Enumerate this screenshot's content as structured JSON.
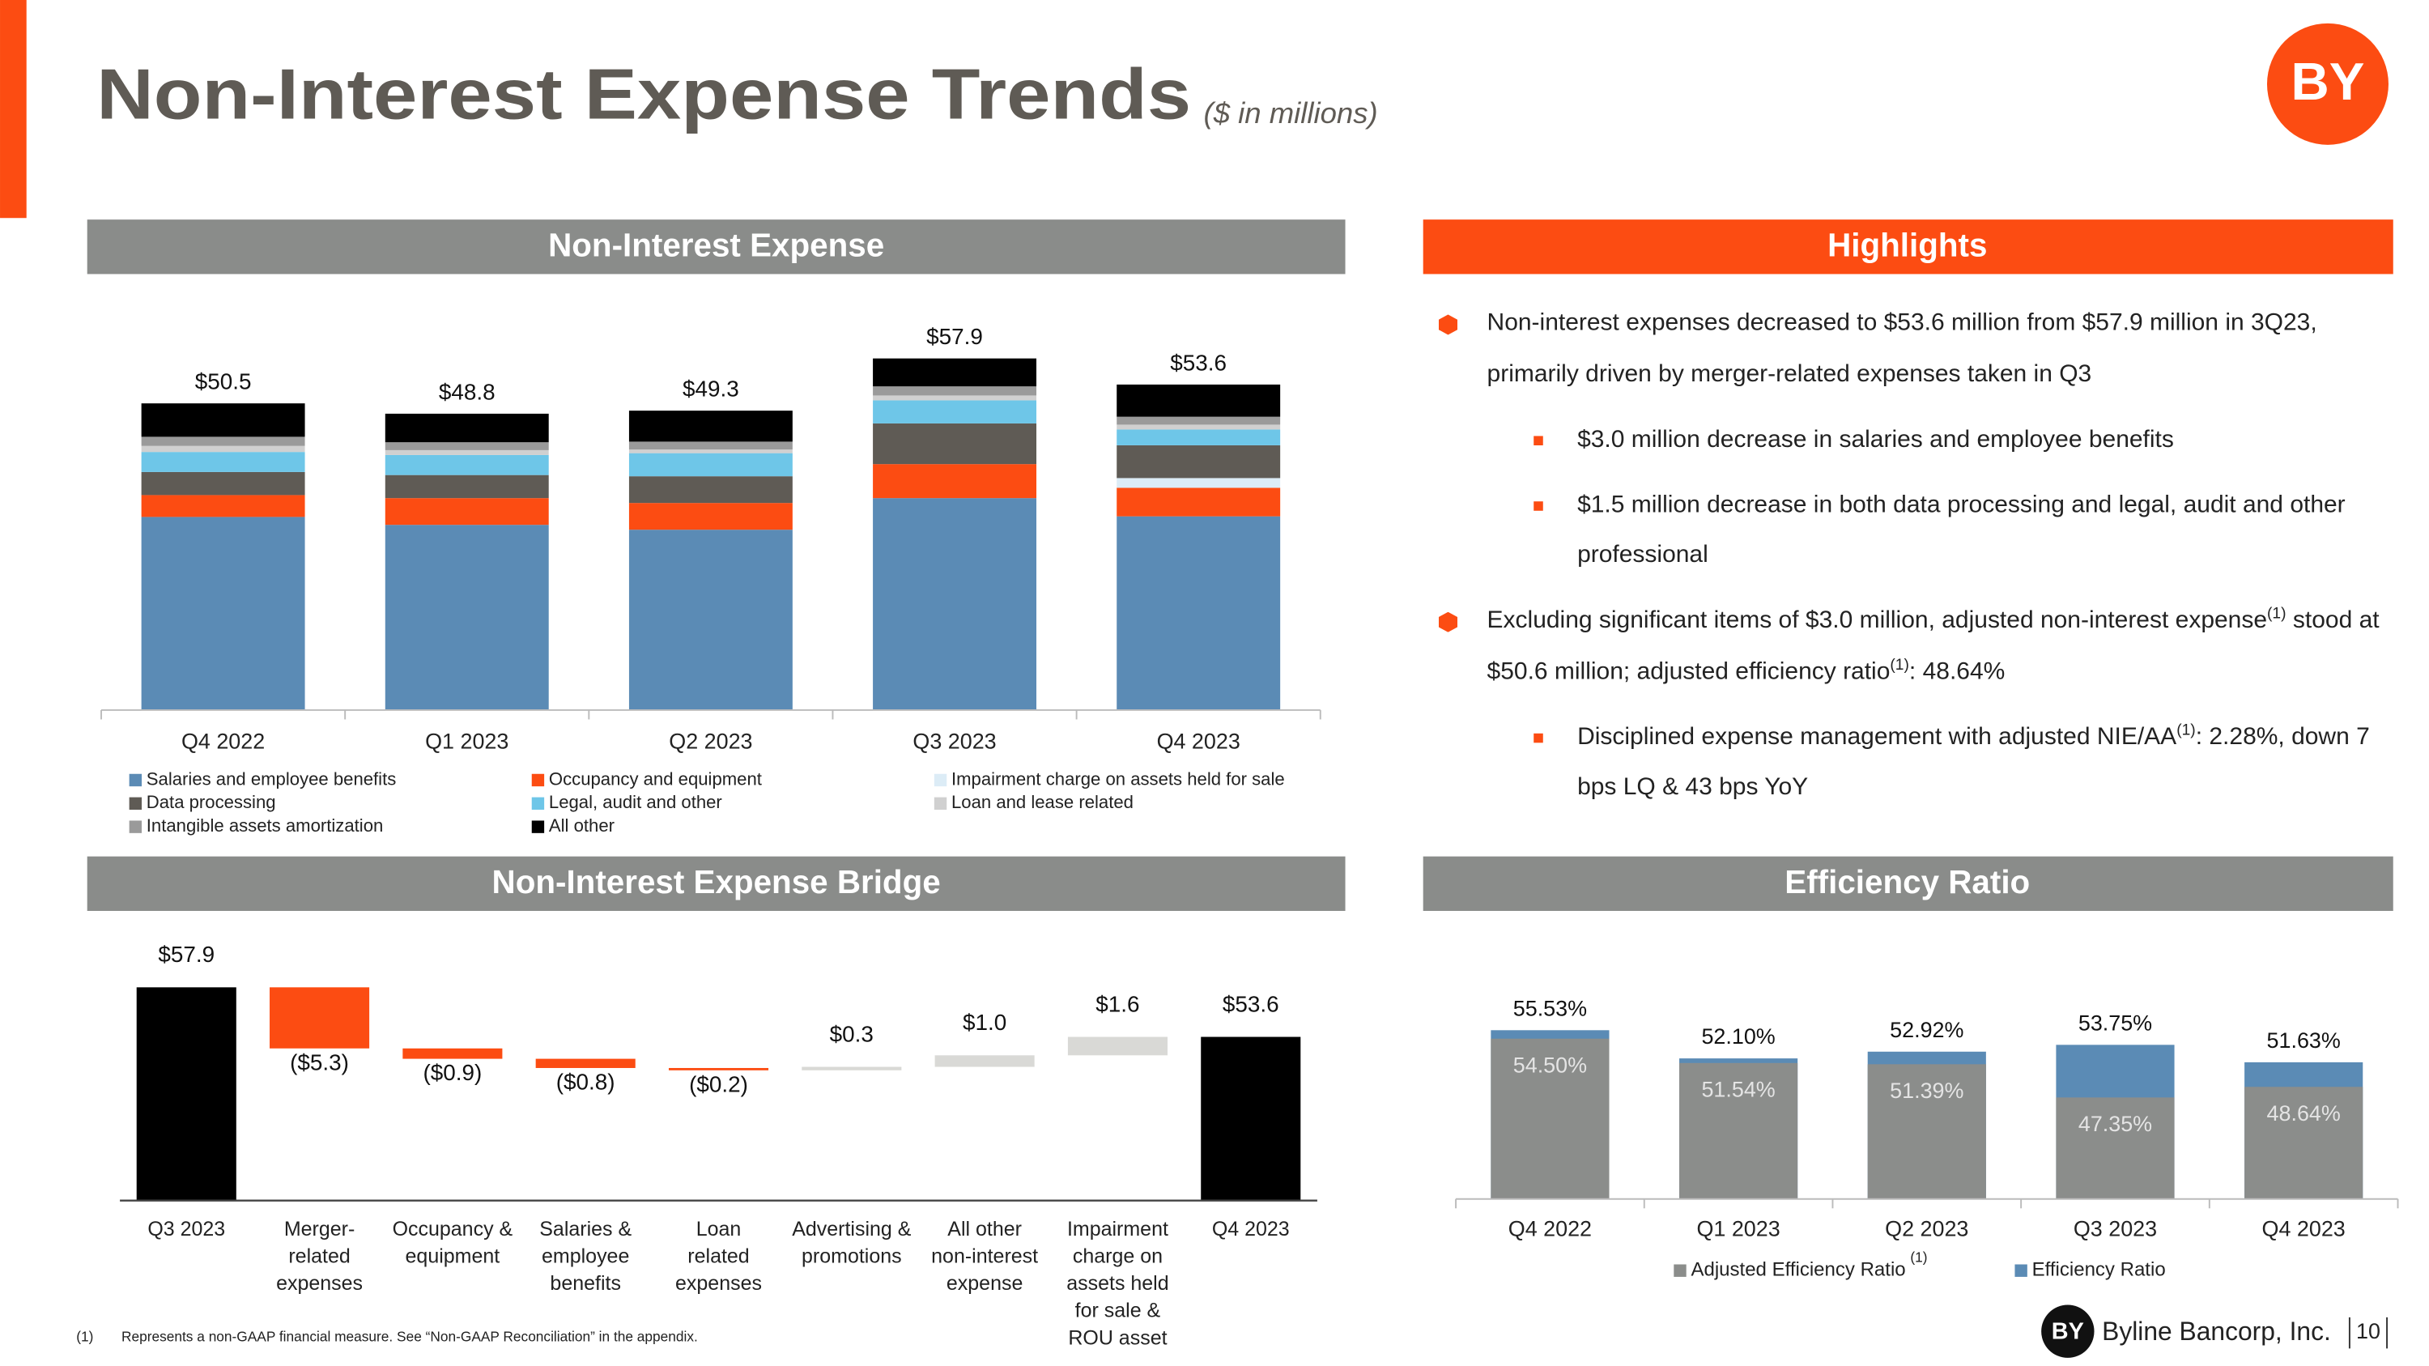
{
  "header": {
    "title": "Non-Interest Expense Trends",
    "subtitle": "($ in millions)",
    "logo": "BY"
  },
  "sections": {
    "expense": "Non-Interest Expense",
    "highlights": "Highlights",
    "bridge": "Non-Interest Expense Bridge",
    "efficiency": "Efficiency Ratio"
  },
  "highlights": [
    {
      "segments": [
        "Non-interest expenses decreased to $53.6 million from $57.9 million in 3Q23, primarily driven by merger-related expenses taken in Q3"
      ],
      "sub": [
        {
          "segments": [
            "$3.0 million decrease in salaries and employee benefits"
          ]
        },
        {
          "segments": [
            "$1.5 million decrease in both data processing and legal, audit and other professional"
          ]
        }
      ]
    },
    {
      "segments": [
        "Excluding significant items of $3.0 million, adjusted non-interest expense",
        "(1)",
        " stood at $50.6 million; adjusted efficiency ratio",
        "(1)",
        ": 48.64%"
      ],
      "sub": [
        {
          "segments": [
            "Disciplined expense management with adjusted NIE/AA",
            "(1)",
            ": 2.28%, down 7 bps LQ & 43 bps YoY"
          ]
        }
      ]
    }
  ],
  "chart_data": [
    {
      "type": "stacked_bar",
      "categories": [
        "Q4 2022",
        "Q1 2023",
        "Q2 2023",
        "Q3 2023",
        "Q4 2023"
      ],
      "ylim": [
        0,
        60
      ],
      "totals": [
        50.5,
        48.8,
        49.3,
        57.9,
        53.6
      ],
      "total_labels": [
        "$50.5",
        "$48.8",
        "$49.3",
        "$57.9",
        "$53.6"
      ],
      "series": [
        {
          "name": "Salaries and employee benefits",
          "color": "#5b8bb5",
          "values": [
            31.8,
            30.5,
            29.7,
            34.9,
            31.9
          ]
        },
        {
          "name": "Occupancy and equipment",
          "color": "#fc4c12",
          "values": [
            3.6,
            4.4,
            4.4,
            5.6,
            4.7
          ]
        },
        {
          "name": "Impairment charge on assets held for sale",
          "color": "#dcecf6",
          "values": [
            0,
            0,
            0,
            0,
            1.6
          ]
        },
        {
          "name": "Data processing",
          "color": "#5f5b55",
          "values": [
            3.8,
            3.8,
            4.4,
            6.7,
            5.4
          ]
        },
        {
          "name": "Legal, audit and other",
          "color": "#6ec6e8",
          "values": [
            3.3,
            3.3,
            3.8,
            3.8,
            2.6
          ]
        },
        {
          "name": "Loan and lease related",
          "color": "#d0d0d0",
          "values": [
            1.0,
            0.8,
            0.6,
            0.8,
            0.8
          ]
        },
        {
          "name": "Intangible assets amortization",
          "color": "#9a9a9a",
          "values": [
            1.5,
            1.3,
            1.3,
            1.5,
            1.3
          ]
        },
        {
          "name": "All other",
          "color": "#000000",
          "values": [
            5.5,
            4.7,
            5.1,
            4.6,
            5.3
          ]
        }
      ]
    },
    {
      "type": "waterfall",
      "categories": [
        [
          "Q3 2023"
        ],
        [
          "Merger-",
          "related",
          "expenses"
        ],
        [
          "Occupancy &",
          "equipment"
        ],
        [
          "Salaries &",
          "employee",
          "benefits"
        ],
        [
          "Loan",
          "related",
          "expenses"
        ],
        [
          "Advertising &",
          "promotions"
        ],
        [
          "All other",
          "non-interest",
          "expense"
        ],
        [
          "Impairment",
          "charge on",
          "assets held",
          "for sale &",
          "ROU asset"
        ],
        [
          "Q4 2023"
        ]
      ],
      "values": [
        57.9,
        -5.3,
        -0.9,
        -0.8,
        -0.2,
        0.3,
        1.0,
        1.6,
        53.6
      ],
      "value_labels": [
        "$57.9",
        "($5.3)",
        "($0.9)",
        "($0.8)",
        "($0.2)",
        "$0.3",
        "$1.0",
        "$1.6",
        "$53.6"
      ],
      "total_indices": [
        0,
        8
      ],
      "total_color": "#000000",
      "decrease_color": "#fc4c12",
      "increase_color": "#d9d9d6",
      "ylim": [
        39.4,
        59.8
      ]
    },
    {
      "type": "overlap_bar",
      "categories": [
        "Q4 2022",
        "Q1 2023",
        "Q2 2023",
        "Q3 2023",
        "Q4 2023"
      ],
      "ylim": [
        35,
        60
      ],
      "series": [
        {
          "name": "Adjusted Efficiency Ratio",
          "name_note": "(1)",
          "color": "#8b8d8b",
          "values": [
            54.5,
            51.54,
            51.39,
            47.35,
            48.64
          ],
          "value_labels": [
            "54.50%",
            "51.54%",
            "51.39%",
            "47.35%",
            "48.64%"
          ]
        },
        {
          "name": "Efficiency Ratio",
          "color": "#5b8bb5",
          "values": [
            55.53,
            52.1,
            52.92,
            53.75,
            51.63
          ],
          "value_labels": [
            "55.53%",
            "52.10%",
            "52.92%",
            "53.75%",
            "51.63%"
          ]
        }
      ]
    }
  ],
  "footnote": {
    "marker": "(1)",
    "text": "Represents a non-GAAP financial measure.  See “Non-GAAP Reconciliation” in the appendix."
  },
  "footer": {
    "logo": "BY",
    "company": "Byline Bancorp, Inc.",
    "page": "10"
  }
}
